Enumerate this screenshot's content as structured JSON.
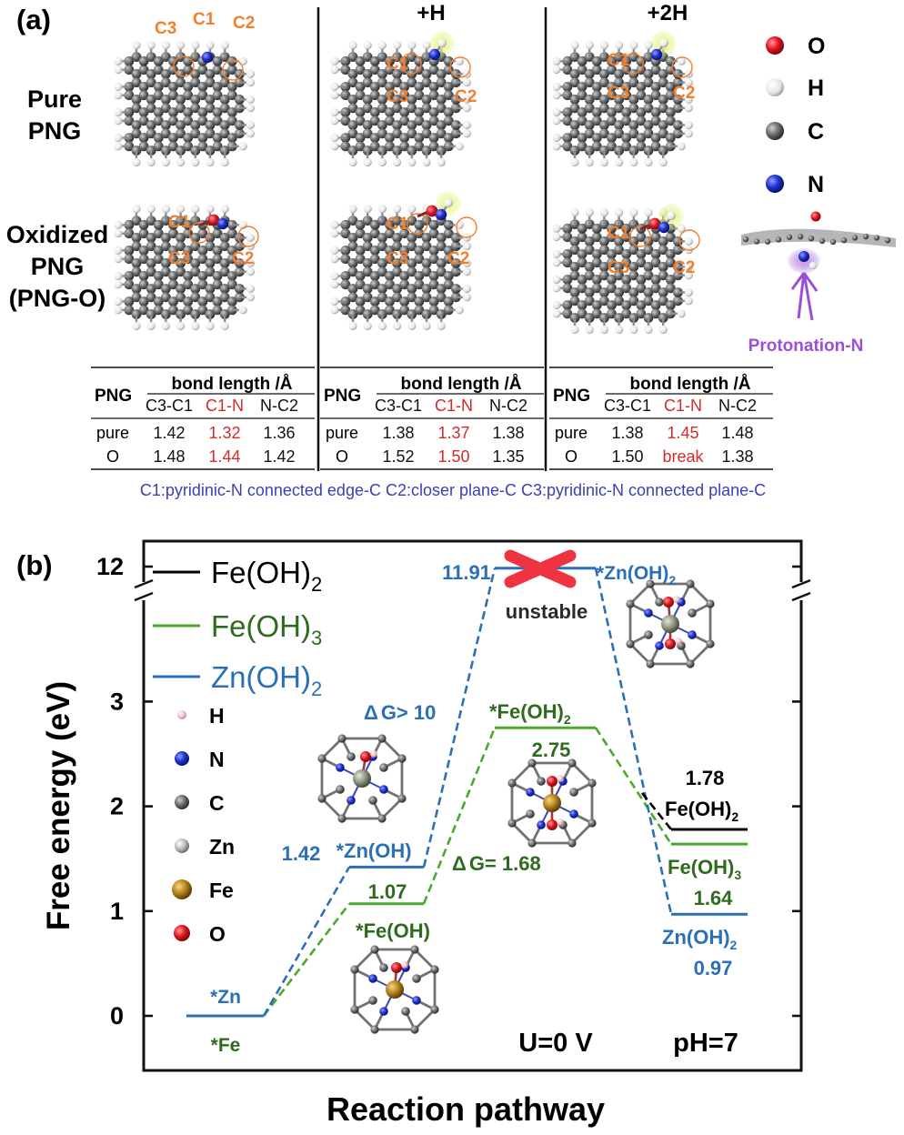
{
  "panel_a": {
    "label": "(a)",
    "columns": [
      "",
      "+H",
      "+2H"
    ],
    "rows": [
      "Pure PNG",
      "Oxidized PNG (PNG-O)"
    ],
    "row_lines": [
      [
        "Pure",
        "PNG"
      ],
      [
        "Oxidized",
        "PNG",
        "(PNG-O)"
      ]
    ],
    "atom_labels": {
      "c1": "C1",
      "c2": "C2",
      "c3": "C3"
    },
    "legend": [
      {
        "symbol": "O",
        "color": "#e8202a"
      },
      {
        "symbol": "H",
        "color": "#f2f2f2"
      },
      {
        "symbol": "C",
        "color": "#5b5d5e"
      },
      {
        "symbol": "N",
        "color": "#2233cc"
      }
    ],
    "side_view_label": "Protonation-N",
    "tables": [
      {
        "corner": "PNG",
        "header": "bond length /Å",
        "cols": [
          "C3-C1",
          "C1-N",
          "N-C2"
        ],
        "rows": [
          {
            "label": "pure",
            "values": [
              "1.42",
              "1.32",
              "1.36"
            ]
          },
          {
            "label": "O",
            "values": [
              "1.48",
              "1.44",
              "1.42"
            ]
          }
        ]
      },
      {
        "corner": "PNG",
        "header": "bond length /Å",
        "cols": [
          "C3-C1",
          "C1-N",
          "N-C2"
        ],
        "rows": [
          {
            "label": "pure",
            "values": [
              "1.38",
              "1.37",
              "1.38"
            ]
          },
          {
            "label": "O",
            "values": [
              "1.52",
              "1.50",
              "1.35"
            ]
          }
        ]
      },
      {
        "corner": "PNG",
        "header": "bond length /Å",
        "cols": [
          "C3-C1",
          "C1-N",
          "N-C2"
        ],
        "rows": [
          {
            "label": "pure",
            "values": [
              "1.38",
              "1.45",
              "1.48"
            ]
          },
          {
            "label": "O",
            "values": [
              "1.50",
              "break",
              "1.38"
            ]
          }
        ]
      }
    ],
    "footnote": "C1:pyridinic-N connected edge-C C2:closer plane-C C3:pyridinic-N connected plane-C",
    "colors": {
      "atom_label": "#f07f2e",
      "c1n": "#d42a2a",
      "footnote": "#3b3fb5",
      "highlight": "#d8ef5a",
      "protonation": "#9b4fd6"
    }
  },
  "chart_data": {
    "type": "line",
    "label": "(b)",
    "xlabel": "Reaction pathway",
    "ylabel": "Free energy (eV)",
    "y_ticks": [
      "0",
      "1",
      "2",
      "3",
      "12"
    ],
    "ylim": [
      -0.3,
      12.3
    ],
    "y_axis_break": [
      3.9,
      11.4
    ],
    "series": [
      {
        "name": "Fe(OH)2",
        "color": "#000000",
        "states": [
          {
            "step": 3,
            "energy": 1.78
          }
        ]
      },
      {
        "name": "Fe(OH)3",
        "color": "#4aa82c",
        "states": [
          {
            "step": 3,
            "energy": 1.64
          }
        ]
      },
      {
        "name": "Zn(OH)2",
        "color": "#2b6fb6",
        "states": [
          {
            "step": 3,
            "energy": 0.97
          }
        ]
      },
      {
        "name": "Fe pathway",
        "color": "#4aa82c",
        "states": [
          {
            "step": 0,
            "energy": 0
          },
          {
            "step": 1,
            "energy": 1.07
          },
          {
            "step": 2,
            "energy": 2.75
          }
        ]
      },
      {
        "name": "Zn pathway",
        "color": "#2b6fb6",
        "states": [
          {
            "step": 0,
            "energy": 0
          },
          {
            "step": 1,
            "energy": 1.42
          },
          {
            "step": 2,
            "energy": 11.91
          }
        ]
      }
    ],
    "legend": [
      {
        "label": "Fe(OH)",
        "sub": "2",
        "color": "#000000"
      },
      {
        "label": "Fe(OH)",
        "sub": "3",
        "color": "#4aa82c"
      },
      {
        "label": "Zn(OH)",
        "sub": "2",
        "color": "#2b6fb6"
      }
    ],
    "atom_legend": [
      {
        "symbol": "H",
        "color": "#f6c9cf"
      },
      {
        "symbol": "N",
        "color": "#2233cc"
      },
      {
        "symbol": "C",
        "color": "#5b5d5e"
      },
      {
        "symbol": "Zn",
        "color": "#c8c8c8"
      },
      {
        "symbol": "Fe",
        "color": "#b58a1e"
      },
      {
        "symbol": "O",
        "color": "#e8202a"
      }
    ],
    "annotations": {
      "zn_start": "*Zn",
      "fe_start": "*Fe",
      "zn_oh_value": "1.42",
      "zn_oh_label": "*Zn(OH)",
      "fe_oh_value": "1.07",
      "fe_oh_label": "*Fe(OH)",
      "dg_zn": "G> 10",
      "dg_fe": "G= 1.68",
      "delta": "Δ",
      "zn_oh2_value": "11.91",
      "zn_oh2_label": "*Zn(OH)",
      "zn_oh2_sub": "2",
      "unstable": "unstable",
      "fe_oh2_label": "*Fe(OH)",
      "fe_oh2_sub": "2",
      "fe_oh2_value": "2.75",
      "final_fe2_value": "1.78",
      "final_fe2_label": "Fe(OH)",
      "final_fe2_sub": "2",
      "final_fe3_label": "Fe(OH)",
      "final_fe3_sub": "3",
      "final_fe3_value": "1.64",
      "final_zn_label": "Zn(OH)",
      "final_zn_sub": "2",
      "final_zn_value": "0.97",
      "condition_u": "U=0 V",
      "condition_ph": "pH=7"
    },
    "colors": {
      "fe_text": "#2f6b1e",
      "zn_text": "#2b6fb6",
      "cross": "#ef3340"
    }
  }
}
